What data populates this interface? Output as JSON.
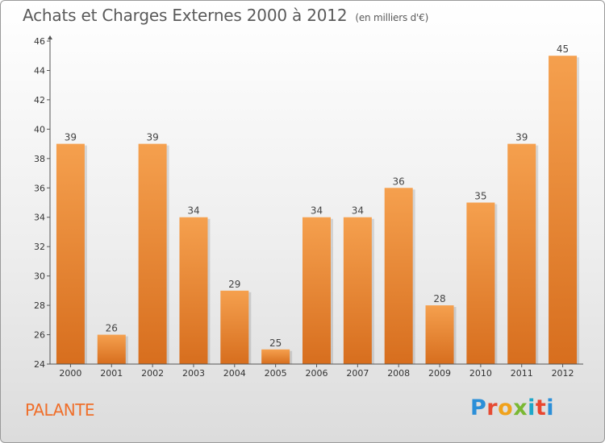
{
  "header": {
    "title": "Achats et Charges Externes 2000 à 2012",
    "unit": "(en milliers d'€)"
  },
  "footer": {
    "commune": "PALANTE",
    "logo_letters": [
      "P",
      "r",
      "o",
      "x",
      "i",
      "t",
      "i"
    ]
  },
  "colors": {
    "bar_top": "#f5a04e",
    "bar_bottom": "#d76e1e",
    "axis": "#555555",
    "grid": "#d0d0d0",
    "commune": "#ef6f2b"
  },
  "chart_data": {
    "type": "bar",
    "title": "Achats et Charges Externes 2000 à 2012",
    "subtitle": "(en milliers d'€)",
    "xlabel": "",
    "ylabel": "",
    "categories": [
      "2000",
      "2001",
      "2002",
      "2003",
      "2004",
      "2005",
      "2006",
      "2007",
      "2008",
      "2009",
      "2010",
      "2011",
      "2012"
    ],
    "values": [
      39,
      26,
      39,
      34,
      29,
      25,
      34,
      34,
      36,
      28,
      35,
      39,
      45
    ],
    "ylim": [
      24,
      46
    ],
    "yticks": [
      24,
      26,
      28,
      30,
      32,
      34,
      36,
      38,
      40,
      42,
      44,
      46
    ],
    "data_labels": true,
    "grid": false,
    "legend": "none"
  }
}
